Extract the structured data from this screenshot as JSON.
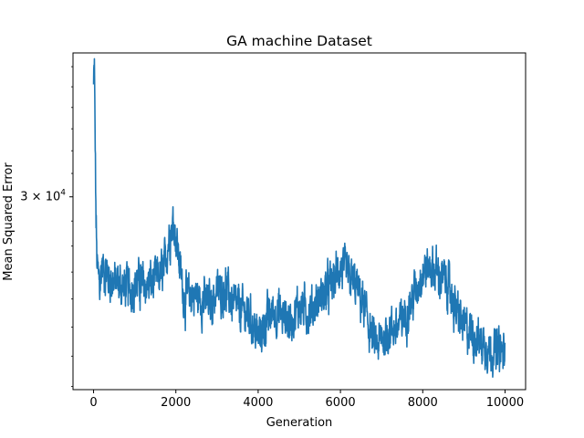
{
  "chart_data": {
    "type": "line",
    "title": "GA machine Dataset",
    "xlabel": "Generation",
    "ylabel": "Mean Squared Error",
    "xlim": [
      -500,
      10500
    ],
    "ylim": [
      22900,
      36700
    ],
    "yscale": "log",
    "grid": false,
    "line_color": "#1f77b4",
    "x_ticks": [
      0,
      2000,
      4000,
      6000,
      8000,
      10000
    ],
    "y_ticks": [
      {
        "value": 30000,
        "label_base": "3",
        "label_times": "×",
        "label_exp_base": "10",
        "label_exp": "4"
      }
    ],
    "series": [
      {
        "x": [
          0,
          20,
          40,
          60,
          80,
          100,
          150,
          200,
          300,
          400,
          500,
          700,
          900,
          1100,
          1300,
          1500,
          1700,
          1850,
          1950,
          2050,
          2200,
          2400,
          2600,
          2800,
          3000,
          3200,
          3400,
          3600,
          3800,
          4000,
          4200,
          4400,
          4600,
          4800,
          5000,
          5200,
          5400,
          5600,
          5800,
          6000,
          6200,
          6400,
          6600,
          6700,
          6800,
          6900,
          7000,
          7200,
          7400,
          7600,
          7800,
          8000,
          8200,
          8400,
          8600,
          8800,
          9000,
          9200,
          9400,
          9600,
          9800,
          10000
        ],
        "y": [
          35000,
          36000,
          32000,
          29000,
          27500,
          27000,
          26500,
          27200,
          27000,
          26800,
          26600,
          26500,
          26400,
          26600,
          26500,
          26700,
          27000,
          28500,
          29000,
          27800,
          26000,
          26200,
          26000,
          25800,
          26200,
          26400,
          25800,
          25600,
          25400,
          24600,
          25200,
          25600,
          25400,
          25200,
          25800,
          25500,
          25800,
          26200,
          26600,
          27200,
          26800,
          26400,
          25600,
          25000,
          24500,
          24300,
          24600,
          24900,
          25000,
          25500,
          26200,
          27000,
          27200,
          26900,
          26600,
          25600,
          25000,
          24800,
          24500,
          24300,
          24200,
          24100
        ]
      }
    ]
  }
}
